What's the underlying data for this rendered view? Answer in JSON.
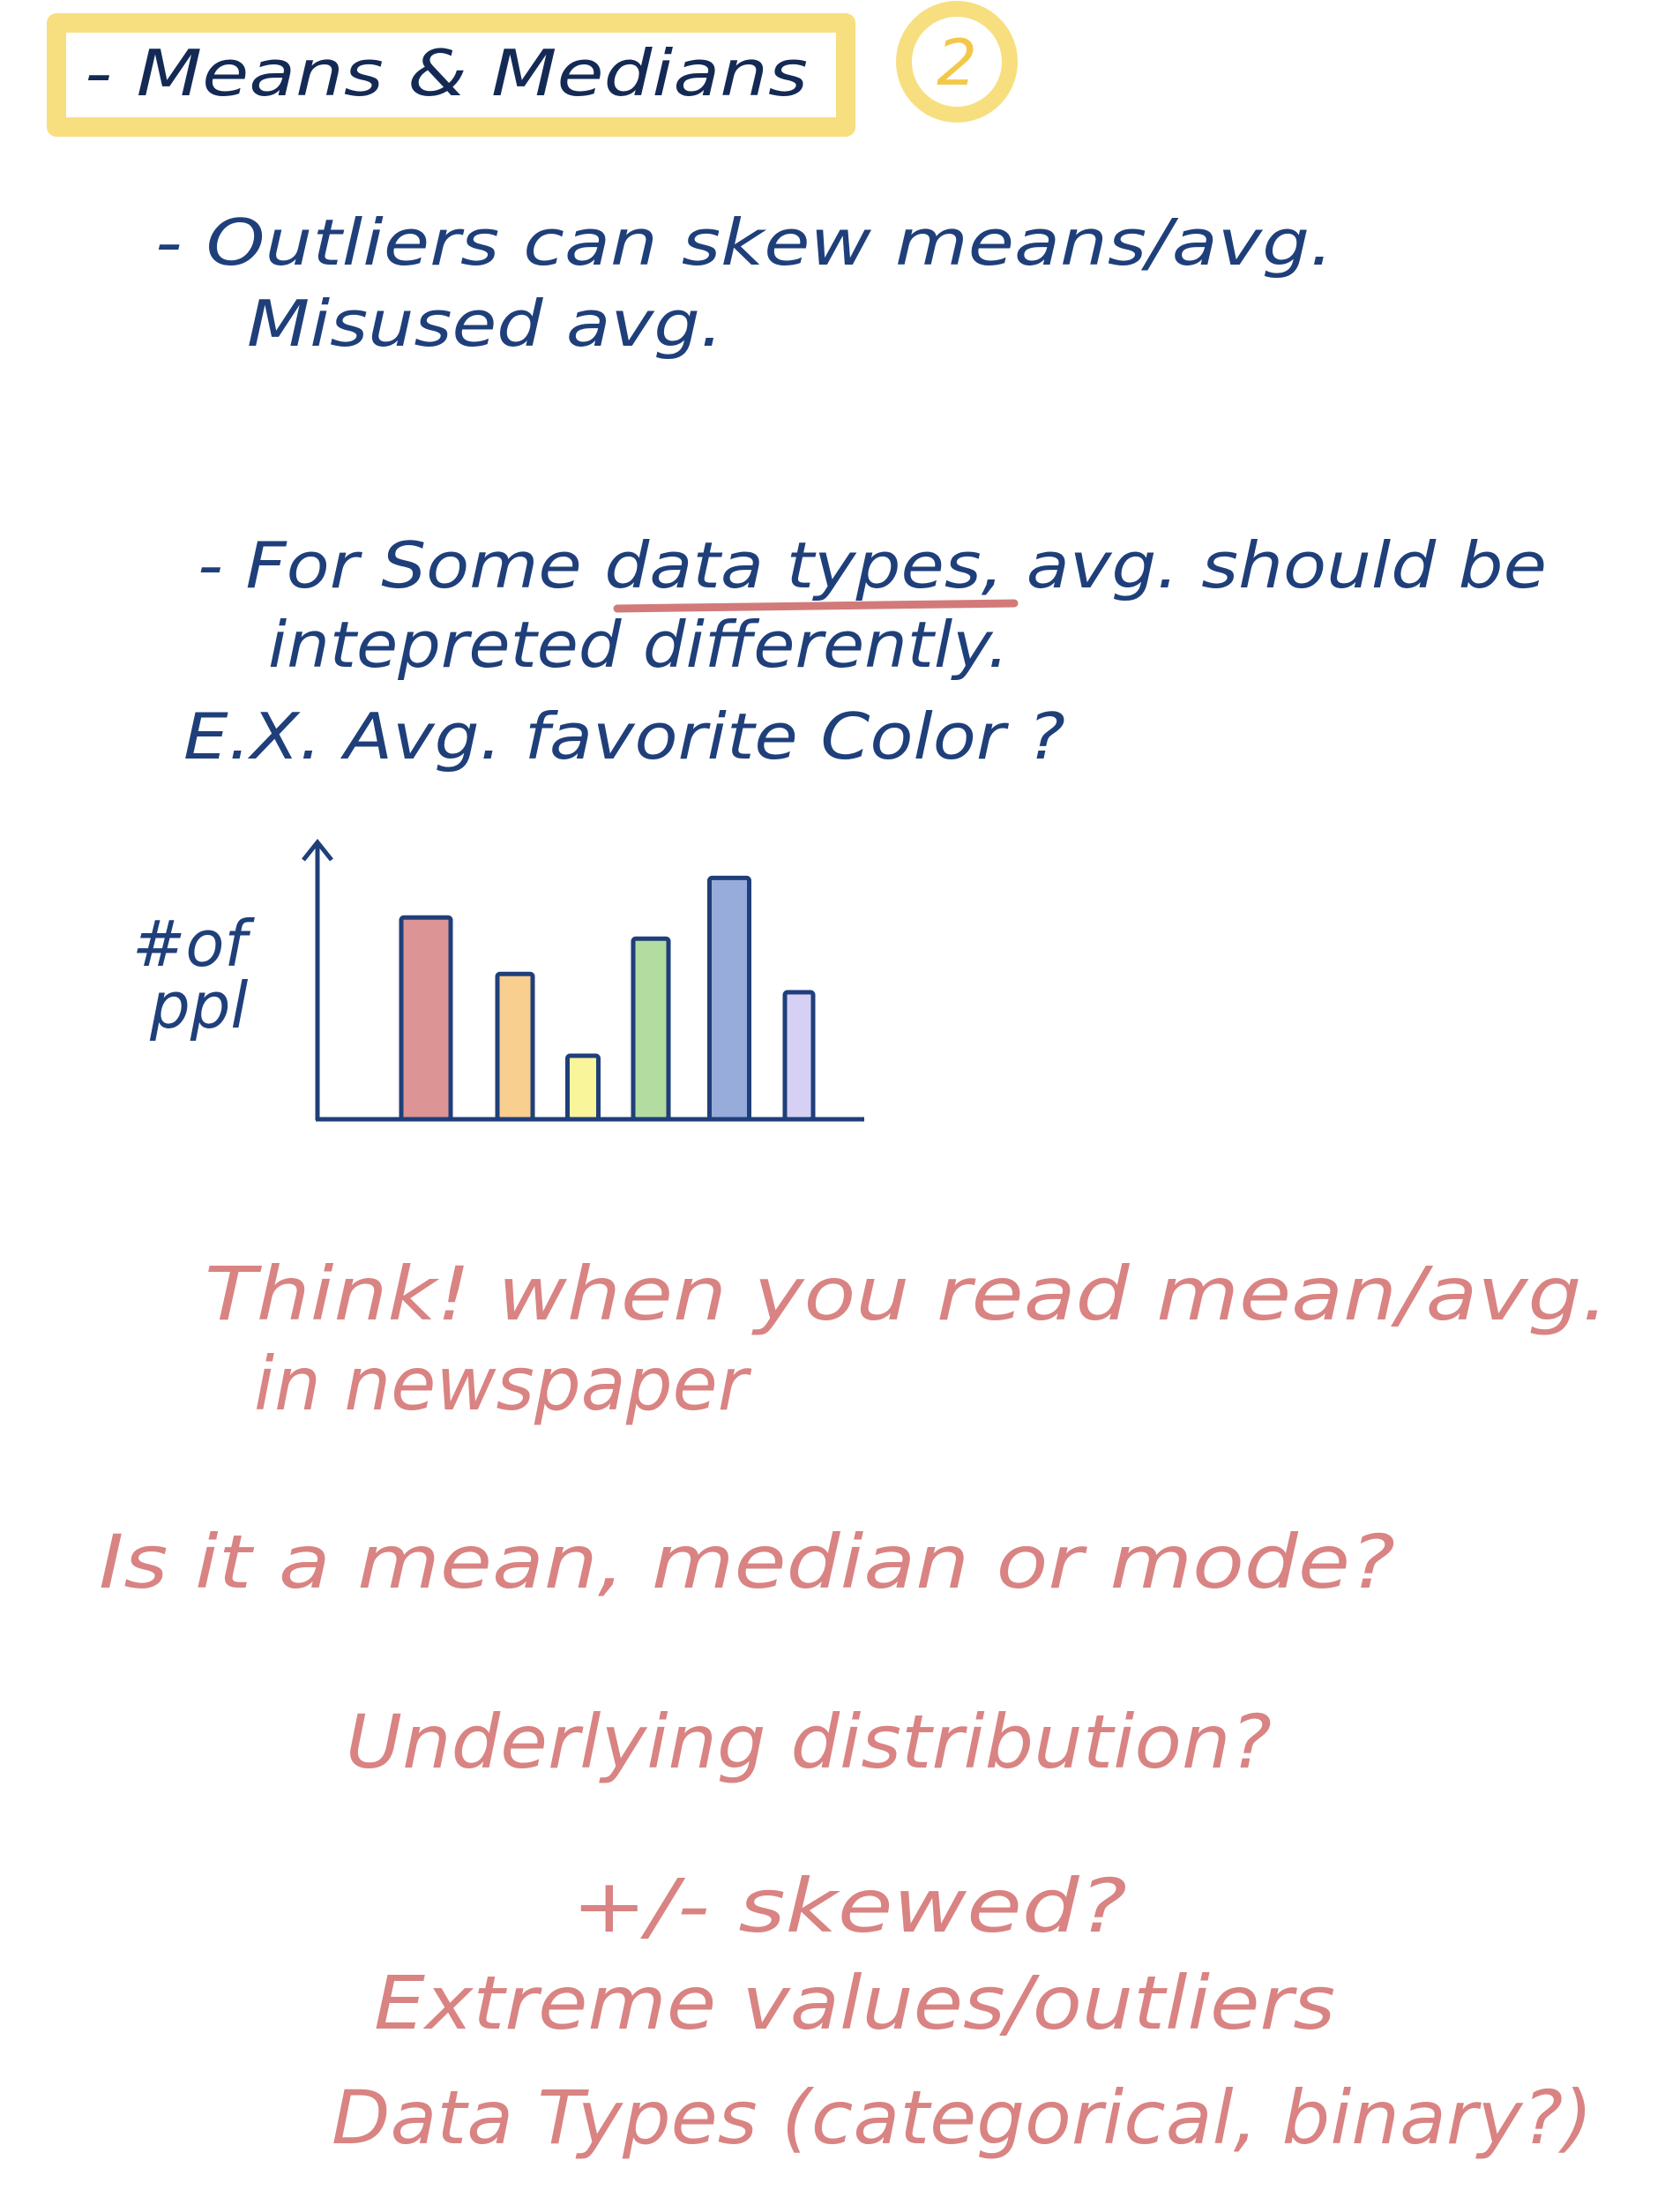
{
  "header": {
    "title": "- Means & Medians",
    "badge": "2"
  },
  "notes": [
    "- Outliers can skew means/avg.",
    "Misused avg.",
    "- For Some data types, avg. should be",
    "intepreted differently.",
    "E.X. Avg. favorite Color ?"
  ],
  "chart_data": {
    "type": "bar",
    "ylabel": [
      "#of",
      "ppl"
    ],
    "categories": [
      null,
      null,
      null,
      null,
      null,
      null
    ],
    "values": [
      143,
      103,
      45,
      128,
      171,
      90
    ],
    "colors": [
      "#dc9494",
      "#f8cf8e",
      "#f9f59a",
      "#b3dca0",
      "#98acdc",
      "#d7d0f5"
    ],
    "ylim": [
      0,
      195
    ]
  },
  "questions": [
    "Think! when you read mean/avg.",
    "in newspaper",
    "Is it a mean, median or mode?",
    "Underlying distribution?",
    "+/- skewed?",
    "Extreme values/outliers",
    "Data Types (categorical, binary?)"
  ]
}
